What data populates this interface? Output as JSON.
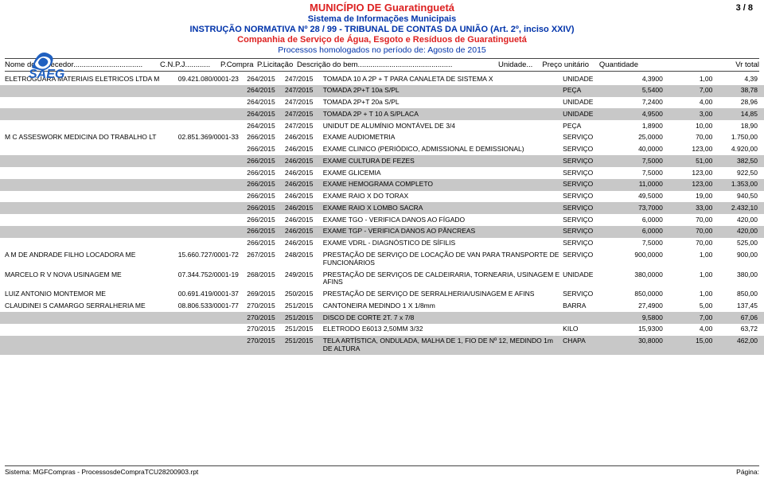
{
  "header": {
    "municipio": "MUNICÍPIO DE  Guaratinguetá",
    "sistema": "Sistema de Informações Municipais",
    "instrucao": "INSTRUÇÃO NORMATIVA Nº 28 / 99 - TRIBUNAL DE CONTAS DA UNIÃO (Art. 2º, inciso XXIV)",
    "companhia": "Companhia de Serviço de Água, Esgoto e Resíduos de Guaratinguetá",
    "processos": "Processos homologados no período de: Agosto de 2015",
    "page": "3 / 8"
  },
  "columns": {
    "fornecedor": "Nome do fornecedor.................................",
    "cnpj": "C.N.P.J............",
    "compra": "P.Compra",
    "licit": "P.Licitação",
    "descricao": "Descrição do bem.............................................",
    "unidade": "Unidade...",
    "preco": "Preço unitário",
    "qtd": "Quantidade",
    "total": "Vr total"
  },
  "rows": [
    {
      "gray": false,
      "forn": "ELETROGUARA MATERIAIS ELETRICOS LTDA M",
      "cnpj": "09.421.080/0001-23",
      "compra": "264/2015",
      "licit": "247/2015",
      "desc": "TOMADA 10 A 2P + T PARA CANALETA DE SISTEMA X",
      "unid": "UNIDADE",
      "preco": "4,3900",
      "qtd": "1,00",
      "total": "4,39"
    },
    {
      "gray": true,
      "forn": "",
      "cnpj": "",
      "compra": "264/2015",
      "licit": "247/2015",
      "desc": "TOMADA 2P+T 10a  S/PL",
      "unid": "PEÇA",
      "preco": "5,5400",
      "qtd": "7,00",
      "total": "38,78"
    },
    {
      "gray": false,
      "forn": "",
      "cnpj": "",
      "compra": "264/2015",
      "licit": "247/2015",
      "desc": "TOMADA 2P+T 20a  S/PL",
      "unid": "UNIDADE",
      "preco": "7,2400",
      "qtd": "4,00",
      "total": "28,96"
    },
    {
      "gray": true,
      "forn": "",
      "cnpj": "",
      "compra": "264/2015",
      "licit": "247/2015",
      "desc": "TOMADA 2P + T 10 A S/PLACA",
      "unid": "UNIDADE",
      "preco": "4,9500",
      "qtd": "3,00",
      "total": "14,85"
    },
    {
      "gray": false,
      "forn": "",
      "cnpj": "",
      "compra": "264/2015",
      "licit": "247/2015",
      "desc": "UNIDUT DE ALUMÍNIO MONTÁVEL DE 3/4",
      "unid": "PEÇA",
      "preco": "1,8900",
      "qtd": "10,00",
      "total": "18,90"
    },
    {
      "gray": false,
      "forn": "M C ASSESWORK MEDICINA DO TRABALHO LT",
      "cnpj": "02.851.369/0001-33",
      "compra": "266/2015",
      "licit": "246/2015",
      "desc": "EXAME AUDIOMETRIA",
      "unid": "SERVIÇO",
      "preco": "25,0000",
      "qtd": "70,00",
      "total": "1.750,00"
    },
    {
      "gray": false,
      "forn": "",
      "cnpj": "",
      "compra": "266/2015",
      "licit": "246/2015",
      "desc": "EXAME CLINICO (PERIÓDICO, ADMISSIONAL E DEMISSIONAL)",
      "unid": "SERVIÇO",
      "preco": "40,0000",
      "qtd": "123,00",
      "total": "4.920,00"
    },
    {
      "gray": true,
      "forn": "",
      "cnpj": "",
      "compra": "266/2015",
      "licit": "246/2015",
      "desc": "EXAME CULTURA DE FEZES",
      "unid": "SERVIÇO",
      "preco": "7,5000",
      "qtd": "51,00",
      "total": "382,50"
    },
    {
      "gray": false,
      "forn": "",
      "cnpj": "",
      "compra": "266/2015",
      "licit": "246/2015",
      "desc": "EXAME GLICEMIA",
      "unid": "SERVIÇO",
      "preco": "7,5000",
      "qtd": "123,00",
      "total": "922,50"
    },
    {
      "gray": true,
      "forn": "",
      "cnpj": "",
      "compra": "266/2015",
      "licit": "246/2015",
      "desc": "EXAME HEMOGRAMA COMPLETO",
      "unid": "SERVIÇO",
      "preco": "11,0000",
      "qtd": "123,00",
      "total": "1.353,00"
    },
    {
      "gray": false,
      "forn": "",
      "cnpj": "",
      "compra": "266/2015",
      "licit": "246/2015",
      "desc": "EXAME RAIO X DO TORAX",
      "unid": "SERVIÇO",
      "preco": "49,5000",
      "qtd": "19,00",
      "total": "940,50"
    },
    {
      "gray": true,
      "forn": "",
      "cnpj": "",
      "compra": "266/2015",
      "licit": "246/2015",
      "desc": "EXAME RAIO X LOMBO SACRA",
      "unid": "SERVIÇO",
      "preco": "73,7000",
      "qtd": "33,00",
      "total": "2.432,10"
    },
    {
      "gray": false,
      "forn": "",
      "cnpj": "",
      "compra": "266/2015",
      "licit": "246/2015",
      "desc": "EXAME TGO - VERIFICA DANOS AO FÍGADO",
      "unid": "SERVIÇO",
      "preco": "6,0000",
      "qtd": "70,00",
      "total": "420,00"
    },
    {
      "gray": true,
      "forn": "",
      "cnpj": "",
      "compra": "266/2015",
      "licit": "246/2015",
      "desc": "EXAME TGP - VERIFICA DANOS AO PÂNCREAS",
      "unid": "SERVIÇO",
      "preco": "6,0000",
      "qtd": "70,00",
      "total": "420,00"
    },
    {
      "gray": false,
      "forn": "",
      "cnpj": "",
      "compra": "266/2015",
      "licit": "246/2015",
      "desc": "EXAME VDRL - DIAGNÓSTICO DE SÍFILIS",
      "unid": "SERVIÇO",
      "preco": "7,5000",
      "qtd": "70,00",
      "total": "525,00"
    },
    {
      "gray": false,
      "forn": "A M DE ANDRADE FILHO LOCADORA ME",
      "cnpj": "15.660.727/0001-72",
      "compra": "267/2015",
      "licit": "248/2015",
      "desc": "PRESTAÇÃO DE SERVIÇO DE LOCAÇÃO DE VAN PARA TRANSPORTE DE FUNCIONÁRIOS",
      "unid": "SERVIÇO",
      "preco": "900,0000",
      "qtd": "1,00",
      "total": "900,00"
    },
    {
      "gray": false,
      "forn": "MARCELO R V NOVA USINAGEM ME",
      "cnpj": "07.344.752/0001-19",
      "compra": "268/2015",
      "licit": "249/2015",
      "desc": "PRESTAÇÃO DE SERVIÇOS DE CALDEIRARIA, TORNEARIA, USINAGEM E AFINS",
      "unid": "UNIDADE",
      "preco": "380,0000",
      "qtd": "1,00",
      "total": "380,00"
    },
    {
      "gray": false,
      "forn": "LUIZ ANTONIO MONTEMOR ME",
      "cnpj": "00.691.419/0001-37",
      "compra": "269/2015",
      "licit": "250/2015",
      "desc": "PRESTAÇÃO DE SERVIÇO DE SERRALHERIA/USINAGEM E AFINS",
      "unid": "SERVIÇO",
      "preco": "850,0000",
      "qtd": "1,00",
      "total": "850,00"
    },
    {
      "gray": false,
      "forn": "CLAUDINEI S CAMARGO SERRALHERIA ME",
      "cnpj": "08.806.533/0001-77",
      "compra": "270/2015",
      "licit": "251/2015",
      "desc": "CANTONEIRA  MEDINDO  1 X 1/8mm",
      "unid": "BARRA",
      "preco": "27,4900",
      "qtd": "5,00",
      "total": "137,45"
    },
    {
      "gray": true,
      "forn": "",
      "cnpj": "",
      "compra": "270/2015",
      "licit": "251/2015",
      "desc": "DISCO DE CORTE 2T. 7 x 7/8",
      "unid": "",
      "preco": "9,5800",
      "qtd": "7,00",
      "total": "67,06"
    },
    {
      "gray": false,
      "forn": "",
      "cnpj": "",
      "compra": "270/2015",
      "licit": "251/2015",
      "desc": "ELETRODO E6013 2,50MM 3/32",
      "unid": "KILO",
      "preco": "15,9300",
      "qtd": "4,00",
      "total": "63,72"
    },
    {
      "gray": true,
      "forn": "",
      "cnpj": "",
      "compra": "270/2015",
      "licit": "251/2015",
      "desc": "TELA ARTÍSTICA, ONDULADA, MALHA DE 1, FIO DE Nº 12, MEDINDO 1m DE ALTURA",
      "unid": "CHAPA",
      "preco": "30,8000",
      "qtd": "15,00",
      "total": "462,00"
    }
  ],
  "footer": {
    "sistema": "Sistema: MGFCompras - ProcessosdeCompraTCU28200903.rpt",
    "pagina": "Página:"
  },
  "style": {
    "accent_red": "#d22",
    "accent_blue": "#0033aa",
    "row_gray": "#c8c8c8",
    "bg": "#ffffff"
  }
}
